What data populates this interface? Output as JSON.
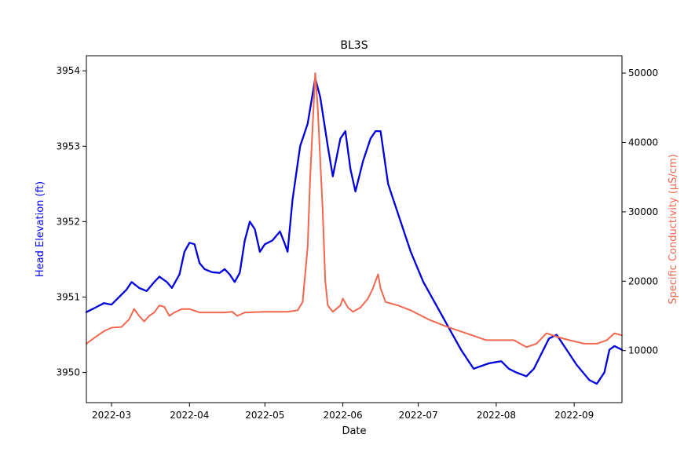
{
  "chart_data": {
    "type": "line",
    "title": "BL3S",
    "xlabel": "Date",
    "ylabel_left": "Head Elevation (ft)",
    "ylabel_right": "Specific Conductivity (µS/cm)",
    "xlim": [
      "2022-02-19",
      "2022-09-20"
    ],
    "ylim_left": [
      3949.6,
      3954.2
    ],
    "ylim_right": [
      2500,
      52500
    ],
    "x_ticks": [
      {
        "date": "2022-03-01",
        "label": "2022-03"
      },
      {
        "date": "2022-04-01",
        "label": "2022-04"
      },
      {
        "date": "2022-05-01",
        "label": "2022-05"
      },
      {
        "date": "2022-06-01",
        "label": "2022-06"
      },
      {
        "date": "2022-07-01",
        "label": "2022-07"
      },
      {
        "date": "2022-08-01",
        "label": "2022-08"
      },
      {
        "date": "2022-09-01",
        "label": "2022-09"
      }
    ],
    "y_ticks_left": [
      3950,
      3951,
      3952,
      3953,
      3954
    ],
    "y_ticks_right": [
      10000,
      20000,
      30000,
      40000,
      50000
    ],
    "grid": false,
    "legend": "none",
    "colors": {
      "head": "#0000dd",
      "conductivity": "#f2674f",
      "left_label": "#0000ff",
      "right_label": "#f2674f"
    },
    "series": [
      {
        "axis": "left",
        "points": [
          [
            "2022-02-19",
            3950.8
          ],
          [
            "2022-02-22",
            3950.85
          ],
          [
            "2022-02-26",
            3950.92
          ],
          [
            "2022-03-01",
            3950.9
          ],
          [
            "2022-03-04",
            3951.0
          ],
          [
            "2022-03-07",
            3951.1
          ],
          [
            "2022-03-09",
            3951.2
          ],
          [
            "2022-03-12",
            3951.12
          ],
          [
            "2022-03-15",
            3951.08
          ],
          [
            "2022-03-18",
            3951.2
          ],
          [
            "2022-03-20",
            3951.27
          ],
          [
            "2022-03-23",
            3951.2
          ],
          [
            "2022-03-25",
            3951.12
          ],
          [
            "2022-03-28",
            3951.3
          ],
          [
            "2022-03-30",
            3951.6
          ],
          [
            "2022-04-01",
            3951.72
          ],
          [
            "2022-04-03",
            3951.7
          ],
          [
            "2022-04-05",
            3951.45
          ],
          [
            "2022-04-07",
            3951.37
          ],
          [
            "2022-04-10",
            3951.33
          ],
          [
            "2022-04-13",
            3951.32
          ],
          [
            "2022-04-15",
            3951.37
          ],
          [
            "2022-04-17",
            3951.3
          ],
          [
            "2022-04-19",
            3951.2
          ],
          [
            "2022-04-21",
            3951.32
          ],
          [
            "2022-04-23",
            3951.75
          ],
          [
            "2022-04-25",
            3952.0
          ],
          [
            "2022-04-27",
            3951.9
          ],
          [
            "2022-04-29",
            3951.6
          ],
          [
            "2022-05-01",
            3951.7
          ],
          [
            "2022-05-04",
            3951.75
          ],
          [
            "2022-05-07",
            3951.87
          ],
          [
            "2022-05-09",
            3951.7
          ],
          [
            "2022-05-10",
            3951.6
          ],
          [
            "2022-05-12",
            3952.3
          ],
          [
            "2022-05-15",
            3953.0
          ],
          [
            "2022-05-18",
            3953.3
          ],
          [
            "2022-05-21",
            3953.9
          ],
          [
            "2022-05-23",
            3953.65
          ],
          [
            "2022-05-26",
            3953.0
          ],
          [
            "2022-05-28",
            3952.6
          ],
          [
            "2022-05-31",
            3953.1
          ],
          [
            "2022-06-02",
            3953.2
          ],
          [
            "2022-06-04",
            3952.7
          ],
          [
            "2022-06-06",
            3952.4
          ],
          [
            "2022-06-09",
            3952.8
          ],
          [
            "2022-06-12",
            3953.1
          ],
          [
            "2022-06-14",
            3953.2
          ],
          [
            "2022-06-16",
            3953.2
          ],
          [
            "2022-06-19",
            3952.5
          ],
          [
            "2022-06-23",
            3952.1
          ],
          [
            "2022-06-28",
            3951.6
          ],
          [
            "2022-07-03",
            3951.2
          ],
          [
            "2022-07-08",
            3950.9
          ],
          [
            "2022-07-13",
            3950.6
          ],
          [
            "2022-07-18",
            3950.3
          ],
          [
            "2022-07-23",
            3950.05
          ],
          [
            "2022-07-29",
            3950.12
          ],
          [
            "2022-08-03",
            3950.15
          ],
          [
            "2022-08-06",
            3950.05
          ],
          [
            "2022-08-09",
            3950.0
          ],
          [
            "2022-08-13",
            3949.95
          ],
          [
            "2022-08-16",
            3950.05
          ],
          [
            "2022-08-19",
            3950.25
          ],
          [
            "2022-08-22",
            3950.45
          ],
          [
            "2022-08-25",
            3950.5
          ],
          [
            "2022-08-28",
            3950.35
          ],
          [
            "2022-09-02",
            3950.1
          ],
          [
            "2022-09-07",
            3949.9
          ],
          [
            "2022-09-10",
            3949.85
          ],
          [
            "2022-09-13",
            3950.0
          ],
          [
            "2022-09-15",
            3950.3
          ],
          [
            "2022-09-17",
            3950.35
          ],
          [
            "2022-09-20",
            3950.3
          ]
        ]
      },
      {
        "axis": "right",
        "points": [
          [
            "2022-02-19",
            11000
          ],
          [
            "2022-02-22",
            11800
          ],
          [
            "2022-02-26",
            12800
          ],
          [
            "2022-03-01",
            13300
          ],
          [
            "2022-03-05",
            13400
          ],
          [
            "2022-03-08",
            14500
          ],
          [
            "2022-03-10",
            16000
          ],
          [
            "2022-03-12",
            15000
          ],
          [
            "2022-03-14",
            14200
          ],
          [
            "2022-03-16",
            15000
          ],
          [
            "2022-03-18",
            15500
          ],
          [
            "2022-03-20",
            16500
          ],
          [
            "2022-03-22",
            16300
          ],
          [
            "2022-03-24",
            15000
          ],
          [
            "2022-03-26",
            15500
          ],
          [
            "2022-03-29",
            16000
          ],
          [
            "2022-04-01",
            16000
          ],
          [
            "2022-04-05",
            15500
          ],
          [
            "2022-04-10",
            15500
          ],
          [
            "2022-04-15",
            15500
          ],
          [
            "2022-04-18",
            15600
          ],
          [
            "2022-04-20",
            15000
          ],
          [
            "2022-04-23",
            15500
          ],
          [
            "2022-05-01",
            15600
          ],
          [
            "2022-05-10",
            15600
          ],
          [
            "2022-05-14",
            15800
          ],
          [
            "2022-05-16",
            17000
          ],
          [
            "2022-05-18",
            25000
          ],
          [
            "2022-05-19",
            35000
          ],
          [
            "2022-05-21",
            50000
          ],
          [
            "2022-05-22",
            45000
          ],
          [
            "2022-05-24",
            30000
          ],
          [
            "2022-05-25",
            20000
          ],
          [
            "2022-05-26",
            16500
          ],
          [
            "2022-05-28",
            15600
          ],
          [
            "2022-05-31",
            16500
          ],
          [
            "2022-06-01",
            17500
          ],
          [
            "2022-06-03",
            16200
          ],
          [
            "2022-06-05",
            15600
          ],
          [
            "2022-06-08",
            16200
          ],
          [
            "2022-06-11",
            17500
          ],
          [
            "2022-06-13",
            19000
          ],
          [
            "2022-06-15",
            21000
          ],
          [
            "2022-06-16",
            19000
          ],
          [
            "2022-06-18",
            17000
          ],
          [
            "2022-06-23",
            16500
          ],
          [
            "2022-06-28",
            15800
          ],
          [
            "2022-07-05",
            14500
          ],
          [
            "2022-07-12",
            13500
          ],
          [
            "2022-07-20",
            12500
          ],
          [
            "2022-07-28",
            11500
          ],
          [
            "2022-08-04",
            11500
          ],
          [
            "2022-08-08",
            11500
          ],
          [
            "2022-08-13",
            10500
          ],
          [
            "2022-08-17",
            11000
          ],
          [
            "2022-08-21",
            12500
          ],
          [
            "2022-08-25",
            12000
          ],
          [
            "2022-08-30",
            11500
          ],
          [
            "2022-09-05",
            11000
          ],
          [
            "2022-09-10",
            11000
          ],
          [
            "2022-09-14",
            11500
          ],
          [
            "2022-09-17",
            12500
          ],
          [
            "2022-09-20",
            12200
          ]
        ]
      }
    ]
  }
}
